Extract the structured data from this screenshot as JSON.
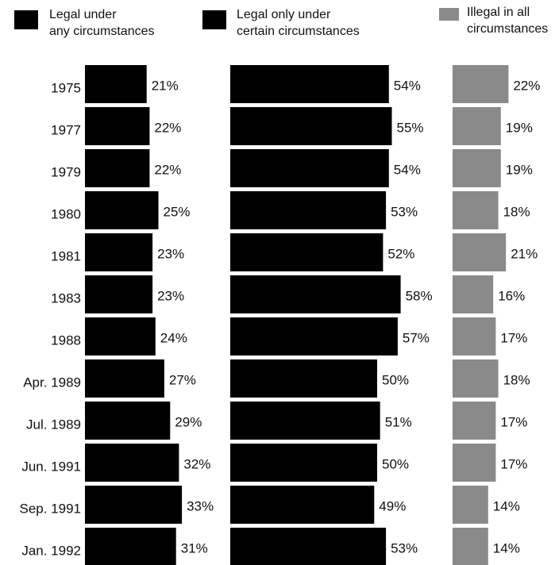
{
  "chart_data": {
    "type": "bar",
    "orientation": "horizontal",
    "categories": [
      "1975",
      "1977",
      "1979",
      "1980",
      "1981",
      "1983",
      "1988",
      "Apr. 1989",
      "Jul. 1989",
      "Jun. 1991",
      "Sep. 1991",
      "Jan. 1992"
    ],
    "series": [
      {
        "name": "Legal under\nany circumstances",
        "color": "#000000",
        "values": [
          21,
          22,
          22,
          25,
          23,
          23,
          24,
          27,
          29,
          32,
          33,
          31
        ],
        "value_labels": [
          "21%",
          "22%",
          "22%",
          "25%",
          "23%",
          "23%",
          "24%",
          "27%",
          "29%",
          "32%",
          "33%",
          "31%"
        ]
      },
      {
        "name": "Legal only under\ncertain circumstances",
        "color": "#000000",
        "values": [
          54,
          55,
          54,
          53,
          52,
          58,
          57,
          50,
          51,
          50,
          49,
          53
        ],
        "value_labels": [
          "54%",
          "55%",
          "54%",
          "53%",
          "52%",
          "58%",
          "57%",
          "50%",
          "51%",
          "50%",
          "49%",
          "53%"
        ]
      },
      {
        "name": "Illegal in all\ncircumstances",
        "color": "#8a8a8a",
        "values": [
          22,
          19,
          19,
          18,
          21,
          16,
          17,
          18,
          17,
          17,
          14,
          14
        ],
        "value_labels": [
          "22%",
          "19%",
          "19%",
          "18%",
          "21%",
          "16%",
          "17%",
          "18%",
          "17%",
          "17%",
          "14%",
          "14%"
        ]
      }
    ]
  }
}
